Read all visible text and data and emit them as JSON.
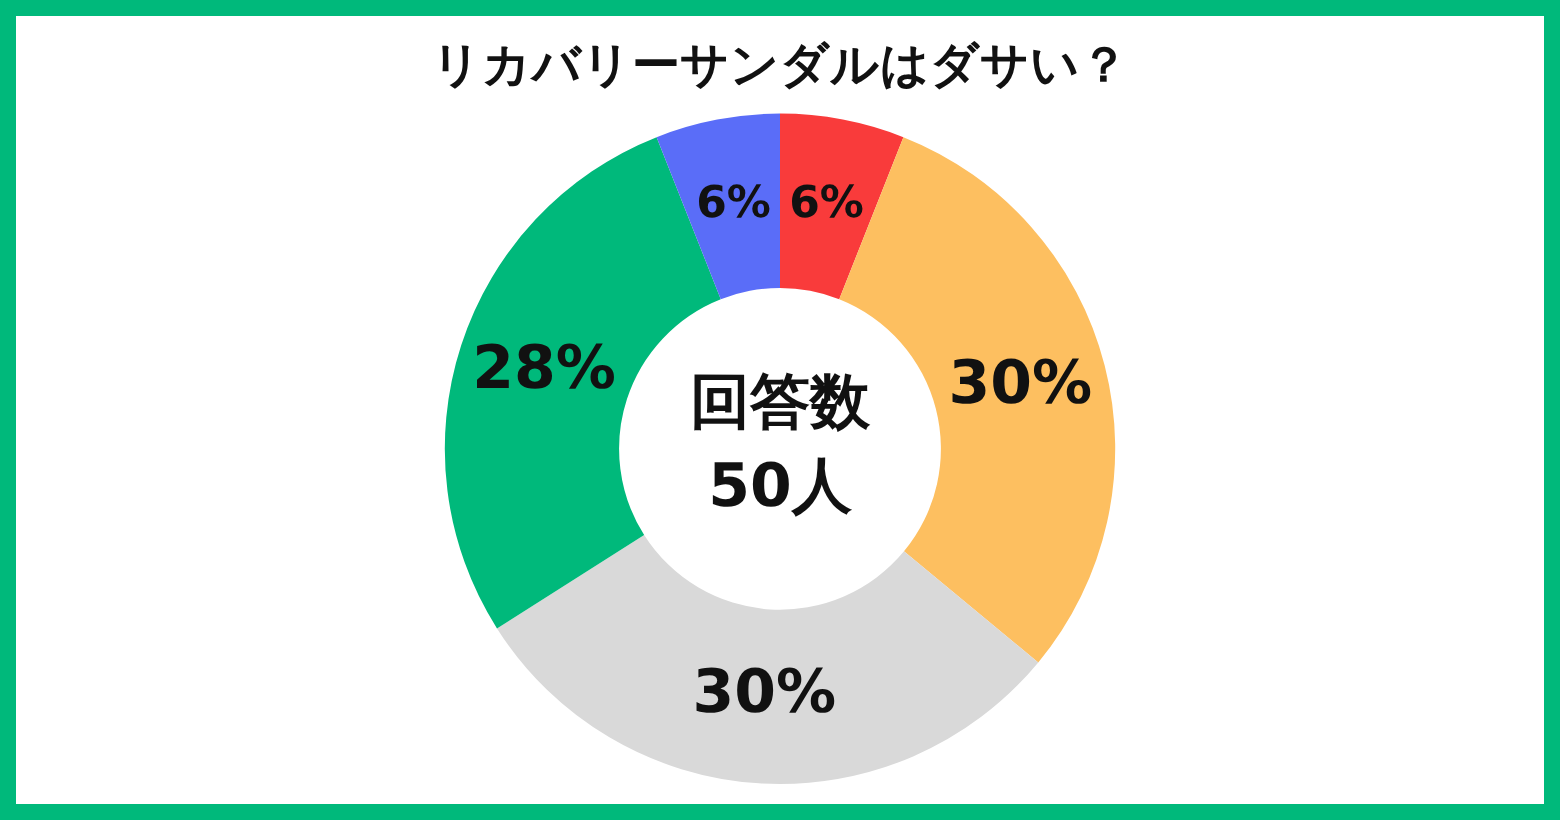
{
  "chart_data": {
    "type": "donut",
    "title": "リカバリーサンダルはダサい？",
    "categories": [
      null,
      null,
      null,
      null,
      null
    ],
    "values": [
      6,
      30,
      30,
      28,
      6
    ],
    "value_labels": [
      "6%",
      "30%",
      "30%",
      "28%",
      "6%"
    ],
    "colors": [
      "#f93b3b",
      "#fdbf60",
      "#d9d9d9",
      "#00b97b",
      "#5a6df8"
    ],
    "annotations": [
      "回答数",
      "50人"
    ],
    "legend": false
  }
}
